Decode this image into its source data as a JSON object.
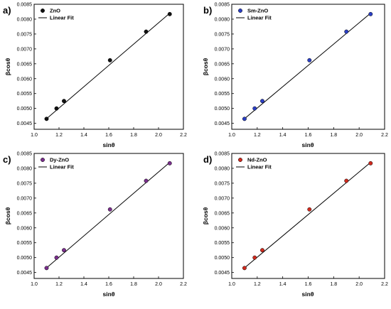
{
  "chart_data": [
    {
      "type": "scatter",
      "panel_label": "a)",
      "xlabel": "sinθ",
      "ylabel": "βcosθ",
      "xlim": [
        1.0,
        2.2
      ],
      "ylim": [
        0.0043,
        0.0085
      ],
      "xticks": [
        1.0,
        1.2,
        1.4,
        1.6,
        1.8,
        2.0,
        2.2
      ],
      "yticks": [
        0.0045,
        0.005,
        0.0055,
        0.006,
        0.0065,
        0.007,
        0.0075,
        0.008,
        0.0085
      ],
      "xtick_labels": [
        "1.0",
        "1.2",
        "1.4",
        "1.6",
        "1.8",
        "2.0",
        "2.2"
      ],
      "ytick_labels": [
        "0.0045",
        "0.0050",
        "0.0055",
        "0.0060",
        "0.0065",
        "0.0070",
        "0.0075",
        "0.0080",
        "0.0085"
      ],
      "series": [
        {
          "name": "ZnO",
          "color": "#111111",
          "x": [
            1.1,
            1.18,
            1.24,
            1.61,
            1.9,
            2.09
          ],
          "y": [
            0.00465,
            0.005,
            0.00525,
            0.00662,
            0.00758,
            0.00817
          ]
        },
        {
          "name": "Linear Fit",
          "kind": "line",
          "color": "#000000",
          "x": [
            1.09,
            2.09
          ],
          "y": [
            0.00462,
            0.0082
          ]
        }
      ],
      "legend_position": "top-left",
      "grid": false
    },
    {
      "type": "scatter",
      "panel_label": "b)",
      "xlabel": "sinθ",
      "ylabel": "βcosθ",
      "xlim": [
        1.0,
        2.2
      ],
      "ylim": [
        0.0043,
        0.0085
      ],
      "xticks": [
        1.0,
        1.2,
        1.4,
        1.6,
        1.8,
        2.0,
        2.2
      ],
      "yticks": [
        0.0045,
        0.005,
        0.0055,
        0.006,
        0.0065,
        0.007,
        0.0075,
        0.008,
        0.0085
      ],
      "xtick_labels": [
        "1.0",
        "1.2",
        "1.4",
        "1.6",
        "1.8",
        "2.0",
        "2.2"
      ],
      "ytick_labels": [
        "0.0045",
        "0.0050",
        "0.0055",
        "0.0060",
        "0.0065",
        "0.0070",
        "0.0075",
        "0.0080",
        "0.0085"
      ],
      "series": [
        {
          "name": "Sm-ZnO",
          "color": "#2b3fc4",
          "x": [
            1.1,
            1.18,
            1.24,
            1.61,
            1.9,
            2.09
          ],
          "y": [
            0.00465,
            0.005,
            0.00525,
            0.00662,
            0.00758,
            0.00817
          ]
        },
        {
          "name": "Linear Fit",
          "kind": "line",
          "color": "#000000",
          "x": [
            1.09,
            2.09
          ],
          "y": [
            0.00462,
            0.0082
          ]
        }
      ],
      "legend_position": "top-left",
      "grid": false
    },
    {
      "type": "scatter",
      "panel_label": "c)",
      "xlabel": "sinθ",
      "ylabel": "βcosθ",
      "xlim": [
        1.0,
        2.2
      ],
      "ylim": [
        0.0043,
        0.0085
      ],
      "xticks": [
        1.0,
        1.2,
        1.4,
        1.6,
        1.8,
        2.0,
        2.2
      ],
      "yticks": [
        0.0045,
        0.005,
        0.0055,
        0.006,
        0.0065,
        0.007,
        0.0075,
        0.008,
        0.0085
      ],
      "xtick_labels": [
        "1.0",
        "1.2",
        "1.4",
        "1.6",
        "1.8",
        "2.0",
        "2.2"
      ],
      "ytick_labels": [
        "0.0045",
        "0.0050",
        "0.0055",
        "0.0060",
        "0.0065",
        "0.0070",
        "0.0075",
        "0.0080",
        "0.0085"
      ],
      "series": [
        {
          "name": "Dy-ZnO",
          "color": "#7a2f8c",
          "x": [
            1.1,
            1.18,
            1.24,
            1.61,
            1.9,
            2.09
          ],
          "y": [
            0.00465,
            0.005,
            0.00525,
            0.00662,
            0.00758,
            0.00817
          ]
        },
        {
          "name": "Linear Fit",
          "kind": "line",
          "color": "#000000",
          "x": [
            1.09,
            2.09
          ],
          "y": [
            0.00462,
            0.0082
          ]
        }
      ],
      "legend_position": "top-left",
      "grid": false
    },
    {
      "type": "scatter",
      "panel_label": "d)",
      "xlabel": "sinθ",
      "ylabel": "βcosθ",
      "xlim": [
        1.0,
        2.2
      ],
      "ylim": [
        0.0043,
        0.0085
      ],
      "xticks": [
        1.0,
        1.2,
        1.4,
        1.6,
        1.8,
        2.0,
        2.2
      ],
      "yticks": [
        0.0045,
        0.005,
        0.0055,
        0.006,
        0.0065,
        0.007,
        0.0075,
        0.008,
        0.0085
      ],
      "xtick_labels": [
        "1.0",
        "1.2",
        "1.4",
        "1.6",
        "1.8",
        "2.0",
        "2.2"
      ],
      "ytick_labels": [
        "0.0045",
        "0.0050",
        "0.0055",
        "0.0060",
        "0.0065",
        "0.0070",
        "0.0075",
        "0.0080",
        "0.0085"
      ],
      "series": [
        {
          "name": "Nd-ZnO",
          "color": "#d02a1e",
          "x": [
            1.1,
            1.18,
            1.24,
            1.61,
            1.9,
            2.09
          ],
          "y": [
            0.00465,
            0.005,
            0.00525,
            0.00662,
            0.00758,
            0.00817
          ]
        },
        {
          "name": "Linear Fit",
          "kind": "line",
          "color": "#000000",
          "x": [
            1.09,
            2.09
          ],
          "y": [
            0.00462,
            0.0082
          ]
        }
      ],
      "legend_position": "top-left",
      "grid": false
    }
  ]
}
